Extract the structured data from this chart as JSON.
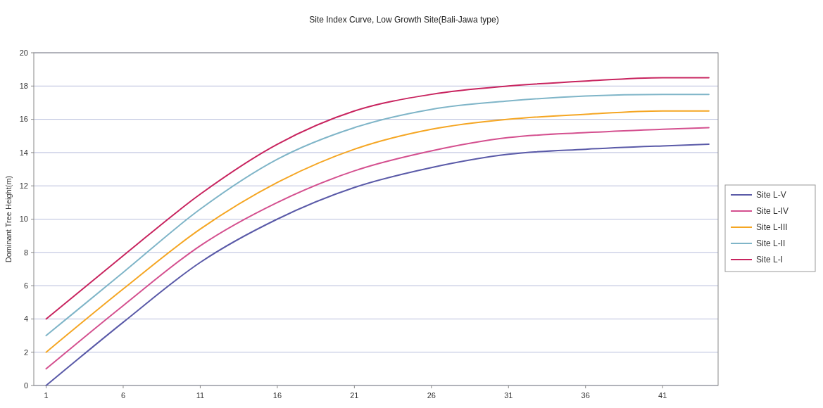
{
  "chart_data": {
    "type": "line",
    "title": "Site Index Curve, Low Growth Site(Bali-Jawa type)",
    "ylabel": "Dominant Tree Height(m)",
    "x": [
      1,
      6,
      11,
      16,
      21,
      26,
      31,
      36,
      41,
      44
    ],
    "xlim": [
      0.2,
      44.6
    ],
    "xticks": [
      1,
      6,
      11,
      16,
      21,
      26,
      31,
      36,
      41
    ],
    "ylim": [
      0,
      20
    ],
    "yticks": [
      0,
      2,
      4,
      6,
      8,
      10,
      12,
      14,
      16,
      18,
      20
    ],
    "grid": "y",
    "legend": "right",
    "marker": "none",
    "line_style": "solid",
    "series": [
      {
        "name": "Site L-V",
        "color": "#5a5aa8",
        "values": [
          0,
          3.8,
          7.4,
          10.0,
          11.9,
          13.1,
          13.9,
          14.2,
          14.4,
          14.5
        ]
      },
      {
        "name": "Site L-IV",
        "color": "#d4508f",
        "values": [
          1,
          4.8,
          8.4,
          11.0,
          12.9,
          14.1,
          14.9,
          15.2,
          15.4,
          15.5
        ]
      },
      {
        "name": "Site L-III",
        "color": "#f5a623",
        "values": [
          2,
          5.8,
          9.4,
          12.2,
          14.2,
          15.4,
          16.0,
          16.3,
          16.5,
          16.5
        ]
      },
      {
        "name": "Site L-II",
        "color": "#7fb5c8",
        "values": [
          3,
          6.8,
          10.6,
          13.6,
          15.5,
          16.6,
          17.1,
          17.4,
          17.5,
          17.5
        ]
      },
      {
        "name": "Site L-I",
        "color": "#c8245f",
        "values": [
          4,
          7.8,
          11.5,
          14.5,
          16.5,
          17.5,
          18.0,
          18.3,
          18.5,
          18.5
        ]
      }
    ]
  }
}
